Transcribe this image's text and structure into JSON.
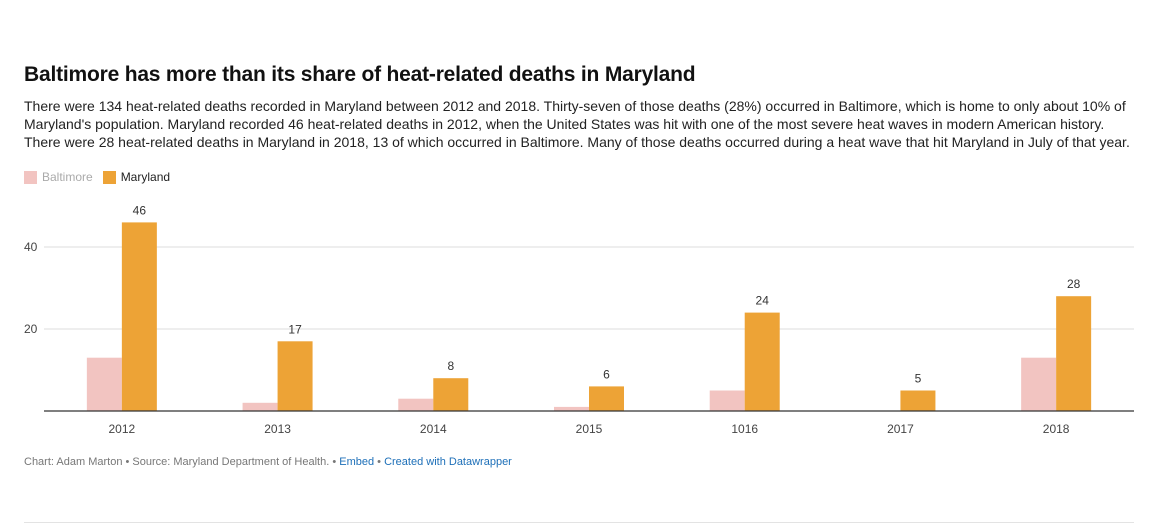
{
  "title": "Baltimore has more than its share of heat-related deaths in Maryland",
  "description": "There were 134 heat-related deaths recorded in Maryland between 2012 and 2018. Thirty-seven of those deaths (28%) occurred in Baltimore, which is home to only about 10% of Maryland's population. Maryland recorded 46 heat-related deaths in 2012, when the United States was hit with one of the most severe heat waves in modern American history. There were 28 heat-related deaths in Maryland in 2018, 13 of which occurred in Baltimore. Many of those deaths occurred during a heat wave that hit Maryland in July of that year.",
  "footer": {
    "credit": "Chart: Adam Marton • Source: Maryland Department of Health. • ",
    "embed": "Embed",
    "separator": " • ",
    "created": "Created with Datawrapper"
  },
  "colors": {
    "baltimore": "#f2c4c1",
    "maryland": "#eda336",
    "grid": "#dddddd",
    "axis": "#333333"
  },
  "chart_data": {
    "type": "bar",
    "categories": [
      "2012",
      "2013",
      "2014",
      "2015",
      "1016",
      "2017",
      "2018"
    ],
    "series": [
      {
        "name": "Baltimore",
        "values": [
          13,
          2,
          3,
          1,
          5,
          0,
          13
        ]
      },
      {
        "name": "Maryland",
        "values": [
          46,
          17,
          8,
          6,
          24,
          5,
          28
        ]
      }
    ],
    "data_labels": [
      "46",
      "17",
      "8",
      "6",
      "24",
      "5",
      "28"
    ],
    "yticks": [
      20,
      40
    ],
    "ylim": [
      0,
      50
    ],
    "grid": true,
    "legend": "top-left"
  }
}
